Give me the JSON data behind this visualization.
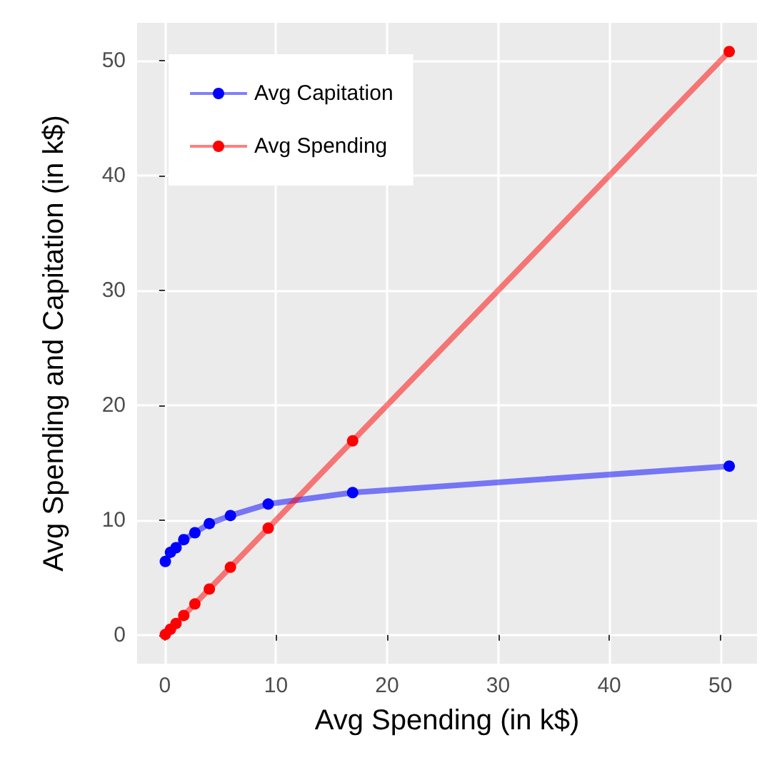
{
  "chart_data": {
    "type": "line",
    "xlabel": "Avg Spending (in k$)",
    "ylabel": "Avg Spending and Capitation (in k$)",
    "xlim": [
      -2.5,
      53.3
    ],
    "ylim": [
      -2.5,
      53.3
    ],
    "xticks": [
      0,
      10,
      20,
      30,
      40,
      50
    ],
    "yticks": [
      0,
      10,
      20,
      30,
      40,
      50
    ],
    "series": [
      {
        "name": "Avg Capitation",
        "color": "#0000ff",
        "x": [
          0.04,
          0.5,
          1.0,
          1.7,
          2.7,
          4.0,
          5.9,
          9.3,
          16.9,
          50.8
        ],
        "values": [
          6.4,
          7.2,
          7.6,
          8.3,
          8.9,
          9.7,
          10.4,
          11.4,
          12.4,
          14.7
        ]
      },
      {
        "name": "Avg Spending",
        "color": "#ff0000",
        "x": [
          0.04,
          0.5,
          1.0,
          1.7,
          2.7,
          4.0,
          5.9,
          9.3,
          16.9,
          50.8
        ],
        "values": [
          0.04,
          0.5,
          1.0,
          1.7,
          2.7,
          4.0,
          5.9,
          9.3,
          16.9,
          50.8
        ]
      }
    ],
    "grid": true,
    "legend": "top left",
    "marker": "circle",
    "line_style": "solid"
  }
}
